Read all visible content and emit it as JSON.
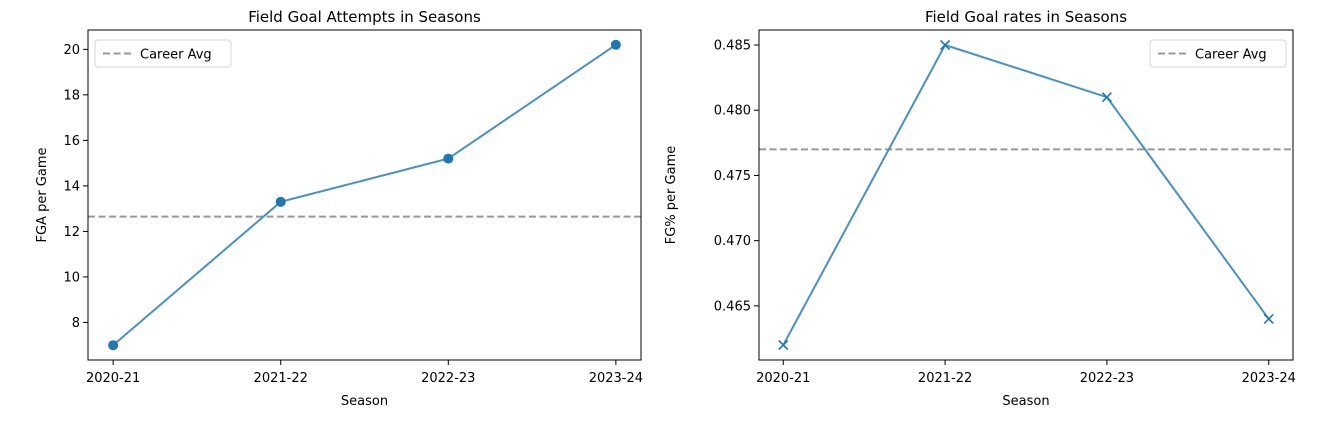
{
  "chart_data": [
    {
      "type": "line",
      "title": "Field Goal Attempts in Seasons",
      "xlabel": "Season",
      "ylabel": "FGA per Game",
      "categories": [
        "2020-21",
        "2021-22",
        "2022-23",
        "2023-24"
      ],
      "series": [
        {
          "values": [
            7.0,
            13.3,
            15.2,
            20.2
          ],
          "color": "#1f77b4",
          "line_color": "#4a90c2",
          "marker": "circle"
        }
      ],
      "reference_line": {
        "name": "Career Avg",
        "value": 12.65,
        "color": "#999999",
        "style": "dashed"
      },
      "ylim": [
        6.35,
        20.85
      ],
      "yticks": [
        8,
        10,
        12,
        14,
        16,
        18,
        20
      ],
      "ytick_labels": [
        "8",
        "10",
        "12",
        "14",
        "16",
        "18",
        "20"
      ],
      "legend": "top-left",
      "grid": false
    },
    {
      "type": "line",
      "title": "Field Goal rates in Seasons",
      "xlabel": "Season",
      "ylabel": "FG% per Game",
      "categories": [
        "2020-21",
        "2021-22",
        "2022-23",
        "2023-24"
      ],
      "series": [
        {
          "values": [
            0.462,
            0.485,
            0.481,
            0.464
          ],
          "color": "#1f77b4",
          "line_color": "#4a90c2",
          "marker": "x"
        }
      ],
      "reference_line": {
        "name": "Career Avg",
        "value": 0.477,
        "color": "#999999",
        "style": "dashed"
      },
      "ylim": [
        0.46085,
        0.48615
      ],
      "yticks": [
        0.465,
        0.47,
        0.475,
        0.48,
        0.485
      ],
      "ytick_labels": [
        "0.465",
        "0.470",
        "0.475",
        "0.480",
        "0.485"
      ],
      "legend": "top-right",
      "grid": false
    }
  ]
}
